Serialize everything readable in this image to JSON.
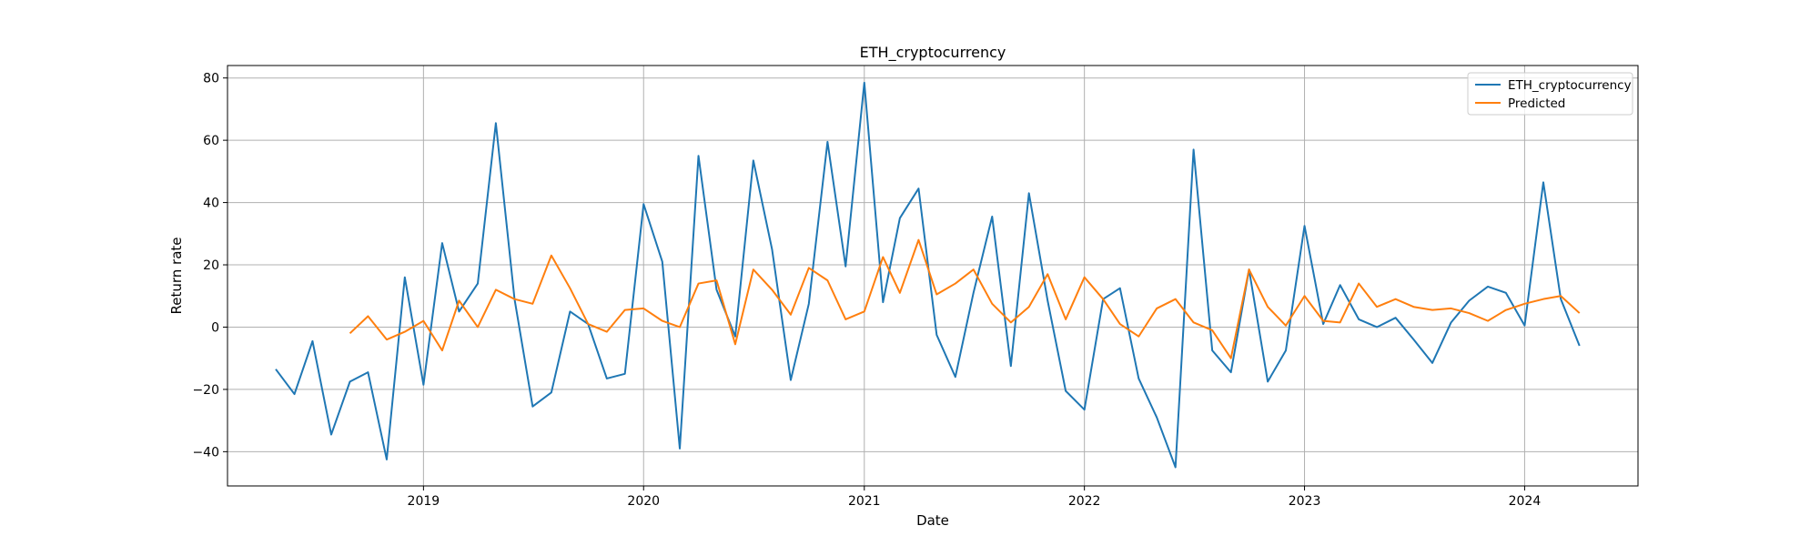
{
  "chart_data": {
    "type": "line",
    "title": "ETH_cryptocurrency",
    "xlabel": "Date",
    "ylabel": "Return rate",
    "x_ticks": [
      "2019",
      "2020",
      "2021",
      "2022",
      "2023",
      "2024"
    ],
    "y_ticks": [
      "−40",
      "−20",
      "0",
      "20",
      "40",
      "60",
      "80"
    ],
    "xlim": [
      "2018-02-10",
      "2024-07-07"
    ],
    "ylim": [
      -51,
      84
    ],
    "grid": true,
    "legend_position": "top-right",
    "series": [
      {
        "name": "ETH_cryptocurrency",
        "color": "#1f77b4",
        "points": [
          [
            "2018-05-01",
            -13.5
          ],
          [
            "2018-06-01",
            -21.5
          ],
          [
            "2018-07-01",
            -4.5
          ],
          [
            "2018-08-01",
            -34.5
          ],
          [
            "2018-09-01",
            -17.5
          ],
          [
            "2018-10-01",
            -14.5
          ],
          [
            "2018-11-01",
            -42.5
          ],
          [
            "2018-12-01",
            16.0
          ],
          [
            "2019-01-01",
            -18.5
          ],
          [
            "2019-02-01",
            27.0
          ],
          [
            "2019-03-01",
            5.0
          ],
          [
            "2019-04-01",
            14.0
          ],
          [
            "2019-05-01",
            65.5
          ],
          [
            "2019-06-01",
            9.0
          ],
          [
            "2019-07-01",
            -25.5
          ],
          [
            "2019-08-01",
            -21.0
          ],
          [
            "2019-09-01",
            5.0
          ],
          [
            "2019-10-01",
            1.0
          ],
          [
            "2019-11-01",
            -16.5
          ],
          [
            "2019-12-01",
            -15.0
          ],
          [
            "2020-01-01",
            39.5
          ],
          [
            "2020-02-01",
            21.0
          ],
          [
            "2020-03-01",
            -39.0
          ],
          [
            "2020-04-01",
            55.0
          ],
          [
            "2020-05-01",
            12.0
          ],
          [
            "2020-06-01",
            -3.0
          ],
          [
            "2020-07-01",
            53.5
          ],
          [
            "2020-08-01",
            25.0
          ],
          [
            "2020-09-01",
            -17.0
          ],
          [
            "2020-10-01",
            7.5
          ],
          [
            "2020-11-01",
            59.5
          ],
          [
            "2020-12-01",
            19.5
          ],
          [
            "2021-01-01",
            78.5
          ],
          [
            "2021-02-01",
            8.0
          ],
          [
            "2021-03-01",
            35.0
          ],
          [
            "2021-04-01",
            44.5
          ],
          [
            "2021-05-01",
            -2.5
          ],
          [
            "2021-06-01",
            -16.0
          ],
          [
            "2021-07-01",
            11.0
          ],
          [
            "2021-08-01",
            35.5
          ],
          [
            "2021-09-01",
            -12.5
          ],
          [
            "2021-10-01",
            43.0
          ],
          [
            "2021-11-01",
            8.5
          ],
          [
            "2021-12-01",
            -20.5
          ],
          [
            "2022-01-01",
            -26.5
          ],
          [
            "2022-02-01",
            9.0
          ],
          [
            "2022-03-01",
            12.5
          ],
          [
            "2022-04-01",
            -16.5
          ],
          [
            "2022-05-01",
            -29.0
          ],
          [
            "2022-06-01",
            -45.0
          ],
          [
            "2022-07-01",
            57.0
          ],
          [
            "2022-08-01",
            -7.5
          ],
          [
            "2022-09-01",
            -14.5
          ],
          [
            "2022-10-01",
            18.5
          ],
          [
            "2022-11-01",
            -17.5
          ],
          [
            "2022-12-01",
            -7.5
          ],
          [
            "2023-01-01",
            32.5
          ],
          [
            "2023-02-01",
            1.0
          ],
          [
            "2023-03-01",
            13.5
          ],
          [
            "2023-04-01",
            2.5
          ],
          [
            "2023-05-01",
            0.0
          ],
          [
            "2023-06-01",
            3.0
          ],
          [
            "2023-07-01",
            -4.0
          ],
          [
            "2023-08-01",
            -11.5
          ],
          [
            "2023-09-01",
            1.5
          ],
          [
            "2023-10-01",
            8.5
          ],
          [
            "2023-11-01",
            13.0
          ],
          [
            "2023-12-01",
            11.0
          ],
          [
            "2024-01-01",
            0.5
          ],
          [
            "2024-02-01",
            46.5
          ],
          [
            "2024-03-01",
            9.0
          ],
          [
            "2024-04-01",
            -6.0
          ]
        ]
      },
      {
        "name": "Predicted",
        "color": "#ff7f0e",
        "points": [
          [
            "2018-09-01",
            -2.0
          ],
          [
            "2018-10-01",
            3.5
          ],
          [
            "2018-11-01",
            -4.0
          ],
          [
            "2018-12-01",
            -1.5
          ],
          [
            "2019-01-01",
            2.0
          ],
          [
            "2019-02-01",
            -7.5
          ],
          [
            "2019-03-01",
            8.5
          ],
          [
            "2019-04-01",
            0.0
          ],
          [
            "2019-05-01",
            12.0
          ],
          [
            "2019-06-01",
            9.0
          ],
          [
            "2019-07-01",
            7.5
          ],
          [
            "2019-08-01",
            23.0
          ],
          [
            "2019-09-01",
            12.5
          ],
          [
            "2019-10-01",
            1.0
          ],
          [
            "2019-11-01",
            -1.5
          ],
          [
            "2019-12-01",
            5.5
          ],
          [
            "2020-01-01",
            6.0
          ],
          [
            "2020-02-01",
            2.0
          ],
          [
            "2020-03-01",
            0.0
          ],
          [
            "2020-04-01",
            14.0
          ],
          [
            "2020-05-01",
            15.0
          ],
          [
            "2020-06-01",
            -5.5
          ],
          [
            "2020-07-01",
            18.5
          ],
          [
            "2020-08-01",
            12.0
          ],
          [
            "2020-09-01",
            4.0
          ],
          [
            "2020-10-01",
            19.0
          ],
          [
            "2020-11-01",
            15.0
          ],
          [
            "2020-12-01",
            2.5
          ],
          [
            "2021-01-01",
            5.0
          ],
          [
            "2021-02-01",
            22.5
          ],
          [
            "2021-03-01",
            11.0
          ],
          [
            "2021-04-01",
            28.0
          ],
          [
            "2021-05-01",
            10.5
          ],
          [
            "2021-06-01",
            14.0
          ],
          [
            "2021-07-01",
            18.5
          ],
          [
            "2021-08-01",
            7.5
          ],
          [
            "2021-09-01",
            1.5
          ],
          [
            "2021-10-01",
            6.5
          ],
          [
            "2021-11-01",
            17.0
          ],
          [
            "2021-12-01",
            2.5
          ],
          [
            "2022-01-01",
            16.0
          ],
          [
            "2022-02-01",
            9.0
          ],
          [
            "2022-03-01",
            1.0
          ],
          [
            "2022-04-01",
            -3.0
          ],
          [
            "2022-05-01",
            6.0
          ],
          [
            "2022-06-01",
            9.0
          ],
          [
            "2022-07-01",
            1.5
          ],
          [
            "2022-08-01",
            -1.0
          ],
          [
            "2022-09-01",
            -10.0
          ],
          [
            "2022-10-01",
            18.5
          ],
          [
            "2022-11-01",
            6.5
          ],
          [
            "2022-12-01",
            0.5
          ],
          [
            "2023-01-01",
            10.0
          ],
          [
            "2023-02-01",
            2.0
          ],
          [
            "2023-03-01",
            1.5
          ],
          [
            "2023-04-01",
            14.0
          ],
          [
            "2023-05-01",
            6.5
          ],
          [
            "2023-06-01",
            9.0
          ],
          [
            "2023-07-01",
            6.5
          ],
          [
            "2023-08-01",
            5.5
          ],
          [
            "2023-09-01",
            6.0
          ],
          [
            "2023-10-01",
            4.5
          ],
          [
            "2023-11-01",
            2.0
          ],
          [
            "2023-12-01",
            5.5
          ],
          [
            "2024-01-01",
            7.5
          ],
          [
            "2024-02-01",
            9.0
          ],
          [
            "2024-03-01",
            10.0
          ],
          [
            "2024-04-01",
            4.5
          ]
        ]
      }
    ]
  }
}
